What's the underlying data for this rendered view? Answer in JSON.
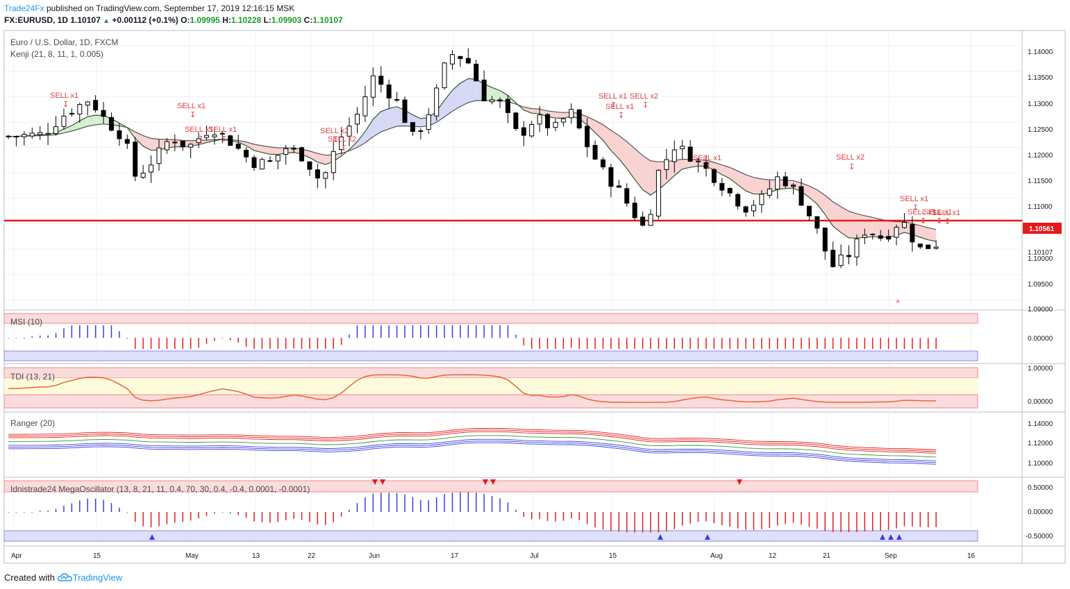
{
  "header": {
    "brand": "Trade24Fx",
    "published": "published on TradingView.com, September 17, 2019 12:16:15 MSK",
    "symbol": "FX:EURUSD, 1D",
    "last": "1.10107",
    "change_arrow": "▲",
    "change": "+0.00112 (+0.1%)",
    "o_label": "O:",
    "o": "1.09995",
    "h_label": "H:",
    "h": "1.10228",
    "l_label": "L:",
    "l": "1.09903",
    "c_label": "C:",
    "c": "1.10107"
  },
  "footer": {
    "created_with": "Created with",
    "logo_text": "TradingView",
    "logo_icon": "tradingview-cloud-icon"
  },
  "colors": {
    "bull": "#ffffff",
    "bear": "#000000",
    "red": "#e21b1b",
    "blue": "#3b3bdd",
    "green": "#2e9a2e",
    "sig": "#e04040"
  },
  "chart_data": [
    {
      "type": "candlestick",
      "title": "Euro / U.S. Dollar, 1D, FXCM",
      "indicator": "Kenji (21, 8, 11, 1, 0.005)",
      "ylim": [
        1.088,
        1.143
      ],
      "yticks": [
        "1.14000",
        "1.13500",
        "1.13000",
        "1.12500",
        "1.12000",
        "1.11500",
        "1.11000",
        "1.10500",
        "1.10000",
        "1.09500",
        "1.09000"
      ],
      "last_price_label": "1.10107",
      "horizontal_line": {
        "value": 1.10561,
        "label": "1.10561",
        "color": "#e21b1b"
      },
      "x_labels": [
        "Apr",
        "15",
        "May",
        "13",
        "22",
        "Jun",
        "17",
        "Jul",
        "15",
        "Aug",
        "12",
        "21",
        "Sep",
        "16"
      ],
      "signals": [
        "SELL x1",
        "SELL x1",
        "SELL x1",
        "SELL x1",
        "SELL x2",
        "SELL x2",
        "SELL x1",
        "SELL x1",
        "SELL x2",
        "SELL x1",
        "SELL x2",
        "SELL x1",
        "SELL x1",
        "SELL x1",
        "SELL x1"
      ],
      "cloud_colors": {
        "bear": "#f9d2d2",
        "bull_green": "#d4f0d0",
        "bull_blue": "#d6d8f6"
      }
    },
    {
      "type": "bar",
      "title": "MSI (10)",
      "ylim": [
        -0.035,
        0.045
      ],
      "yticks": [
        "0.00000"
      ]
    },
    {
      "type": "line",
      "title": "TDI (13, 21)",
      "ylim": [
        -0.12,
        1.15
      ],
      "yticks": [
        "1.00000",
        "0.00000"
      ]
    },
    {
      "type": "line",
      "title": "Ranger (20)",
      "ylim": [
        1.08,
        1.152
      ],
      "yticks": [
        "1.14000",
        "1.12000",
        "1.10000"
      ]
    },
    {
      "type": "bar",
      "title": "Idnistrade24 MegaOscillator (13, 8, 21, 11, 0.4, 70, 30, 0.4, -0.4, 0.0001, -0.0001)",
      "ylim": [
        -0.68,
        0.68
      ],
      "yticks": [
        "0.50000",
        "0.00000",
        "-0.50000"
      ]
    }
  ]
}
